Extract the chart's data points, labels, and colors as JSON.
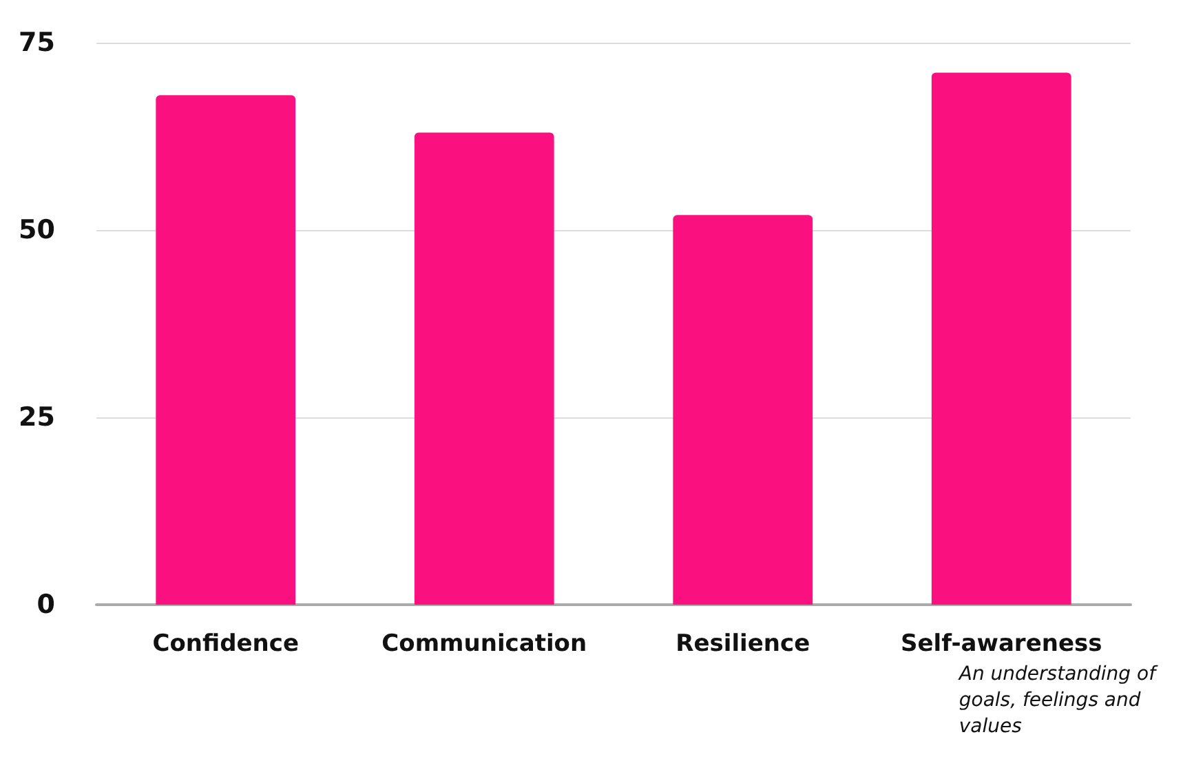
{
  "chart_data": {
    "type": "bar",
    "categories": [
      "Confidence",
      "Communication",
      "Resilience",
      "Self-awareness"
    ],
    "values": [
      68,
      63,
      52,
      71
    ],
    "color": "#fa117f",
    "ylim": [
      0,
      75
    ],
    "yticks": [
      0,
      25,
      50,
      75
    ],
    "grid": "y",
    "annotations": [
      "An understanding of\ngoals, feelings and\nvalues"
    ]
  }
}
